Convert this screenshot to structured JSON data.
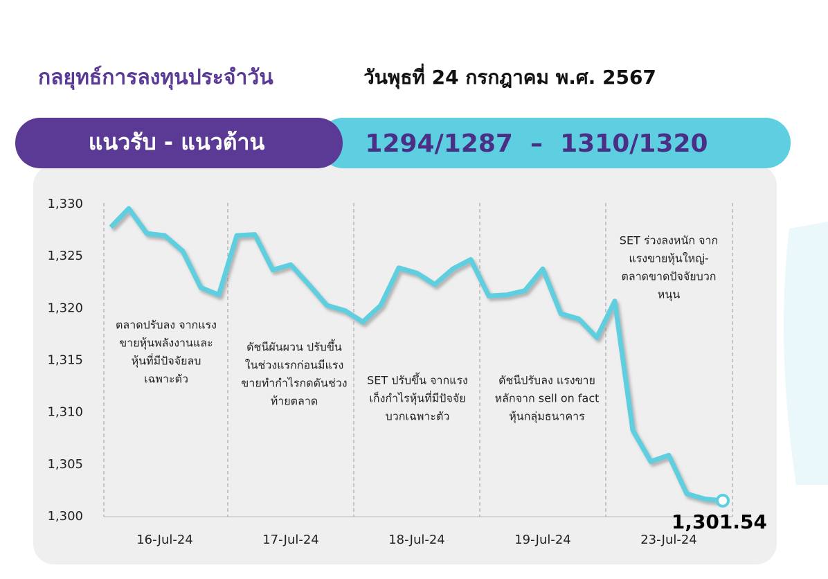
{
  "header": {
    "title": "กลยุทธ์การลงทุนประจำวัน",
    "date": "วันพุธที่ 24 กรกฎาคม พ.ศ. 2567",
    "band_label": "แนวรับ - แนวต้าน",
    "band_levels": "1294/1287  –  1310/1320"
  },
  "chart_data": {
    "type": "line",
    "categories": [
      null,
      null,
      null,
      "16-Jul-24",
      null,
      null,
      null,
      null,
      null,
      null,
      "17-Jul-24",
      null,
      null,
      null,
      null,
      null,
      null,
      "18-Jul-24",
      null,
      null,
      null,
      null,
      null,
      null,
      "19-Jul-24",
      null,
      null,
      null,
      null,
      null,
      null,
      "23-Jul-24",
      null,
      null,
      null
    ],
    "series": [
      {
        "name": "SET",
        "color": "#5ecfe0",
        "values": [
          1327.8,
          1329.6,
          1327.2,
          1327.0,
          1325.5,
          1322.0,
          1321.3,
          1327.0,
          1327.1,
          1323.7,
          1324.2,
          1322.3,
          1320.3,
          1319.8,
          1318.7,
          1320.3,
          1323.9,
          1323.4,
          1322.3,
          1323.8,
          1324.7,
          1321.2,
          1321.3,
          1321.7,
          1323.8,
          1319.5,
          1319.0,
          1317.2,
          1320.7,
          1308.3,
          1305.3,
          1305.9,
          1302.2,
          1301.7,
          1301.54
        ],
        "value_labels": [
          null,
          null,
          null,
          null,
          null,
          null,
          null,
          null,
          null,
          null,
          null,
          null,
          null,
          null,
          null,
          null,
          null,
          null,
          null,
          null,
          null,
          null,
          null,
          null,
          null,
          null,
          null,
          null,
          null,
          null,
          null,
          null,
          null,
          null,
          "1,301.54"
        ]
      }
    ],
    "ylim": [
      1300,
      1330
    ],
    "yticks": [
      {
        "value": 1300,
        "label": "1,300"
      },
      {
        "value": 1305,
        "label": "1,305"
      },
      {
        "value": 1310,
        "label": "1,310"
      },
      {
        "value": 1315,
        "label": "1,315"
      },
      {
        "value": 1320,
        "label": "1,320"
      },
      {
        "value": 1325,
        "label": "1,325"
      },
      {
        "value": 1330,
        "label": "1,330"
      }
    ],
    "annotations": [
      [
        "ตลาดปรับลง จากแรง",
        "ขายหุ้นพลังงานและ",
        "หุ้นที่มีปัจจัยลบ",
        "เฉพาะตัว"
      ],
      [
        "ดัชนีผันผวน ปรับขึ้น",
        "ในช่วงแรกก่อนมีแรง",
        "ขายทำกำไรกดดันช่วง",
        "ท้ายตลาด"
      ],
      [
        "SET ปรับขึ้น จากแรง",
        "เก็งกำไรหุ้นที่มีปัจจัย",
        "บวกเฉพาะตัว"
      ],
      [
        "ดัชนีปรับลง แรงขาย",
        "หลักจาก sell on fact",
        "หุ้นกลุ่มธนาคาร"
      ],
      [
        "SET ร่วงลงหนัก จาก",
        "แรงขายหุ้นใหญ่-",
        "ตลาดขาดปัจจัยบวก",
        "หนุน"
      ]
    ]
  }
}
